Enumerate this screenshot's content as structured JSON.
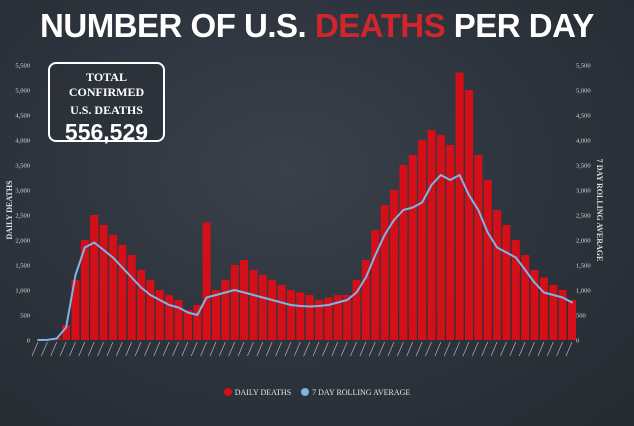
{
  "title": {
    "part1": "NUMBER OF U.S. ",
    "part2": "DEATHS",
    "part3": " PER DAY"
  },
  "total_box": {
    "line1": "TOTAL CONFIRMED",
    "line2": "U.S. DEATHS",
    "value": "556,529"
  },
  "colors": {
    "daily": "#d40f18",
    "average": "#7fb4e6",
    "title_accent": "#d0262b",
    "background": "#2b313a"
  },
  "chart_data": {
    "type": "bar",
    "xlabel": "",
    "ylabel": "DAILY DEATHS",
    "y2label": "7 DAY ROLLING AVERAGE",
    "ylim": [
      0,
      5500
    ],
    "yticks": [
      "0",
      "500",
      "1,000",
      "1,500",
      "2,000",
      "2,500",
      "3,000",
      "3,500",
      "4,000",
      "4,500",
      "5,000",
      "5,500"
    ],
    "grid": false,
    "legend_position": "bottom-center",
    "series": [
      {
        "name": "DAILY DEATHS",
        "kind": "bar",
        "x_weeks": [
          0,
          1,
          2,
          3,
          4,
          5,
          6,
          7,
          8,
          9,
          10,
          11,
          12,
          13,
          14,
          15,
          16,
          17,
          18,
          19,
          20,
          21,
          22,
          23,
          24,
          25,
          26,
          27,
          28,
          29,
          30,
          31,
          32,
          33,
          34,
          35,
          36,
          37,
          38,
          39,
          40,
          41,
          42,
          43,
          44,
          45,
          46,
          47,
          48,
          49,
          50,
          51,
          52,
          53,
          54,
          55,
          56,
          57
        ],
        "peak_values": [
          0,
          5,
          40,
          300,
          1200,
          2000,
          2500,
          2300,
          2100,
          1900,
          1700,
          1400,
          1200,
          1000,
          900,
          800,
          600,
          700,
          2350,
          1000,
          1200,
          1500,
          1600,
          1400,
          1300,
          1200,
          1100,
          1000,
          950,
          900,
          800,
          850,
          900,
          900,
          1200,
          1600,
          2200,
          2700,
          3000,
          3500,
          3700,
          4000,
          4200,
          4100,
          3900,
          5350,
          5000,
          3700,
          3200,
          2600,
          2300,
          2000,
          1700,
          1400,
          1250,
          1100,
          1000,
          800
        ]
      },
      {
        "name": "7 DAY ROLLING AVERAGE",
        "kind": "line",
        "x_weeks": [
          0,
          1,
          2,
          3,
          4,
          5,
          6,
          7,
          8,
          9,
          10,
          11,
          12,
          13,
          14,
          15,
          16,
          17,
          18,
          19,
          20,
          21,
          22,
          23,
          24,
          25,
          26,
          27,
          28,
          29,
          30,
          31,
          32,
          33,
          34,
          35,
          36,
          37,
          38,
          39,
          40,
          41,
          42,
          43,
          44,
          45,
          46,
          47,
          48,
          49,
          50,
          51,
          52,
          53,
          54,
          55,
          56,
          57
        ],
        "values": [
          0,
          2,
          30,
          250,
          1300,
          1850,
          1950,
          1800,
          1650,
          1450,
          1250,
          1050,
          900,
          800,
          700,
          650,
          550,
          500,
          850,
          900,
          950,
          1000,
          950,
          900,
          850,
          800,
          750,
          700,
          680,
          670,
          680,
          700,
          750,
          800,
          950,
          1250,
          1700,
          2100,
          2400,
          2600,
          2650,
          2750,
          3100,
          3300,
          3200,
          3300,
          2900,
          2600,
          2150,
          1850,
          1750,
          1650,
          1400,
          1150,
          950,
          900,
          850,
          750
        ]
      }
    ]
  },
  "legend": {
    "daily": "DAILY DEATHS",
    "average": "7 DAY ROLLING AVERAGE"
  }
}
